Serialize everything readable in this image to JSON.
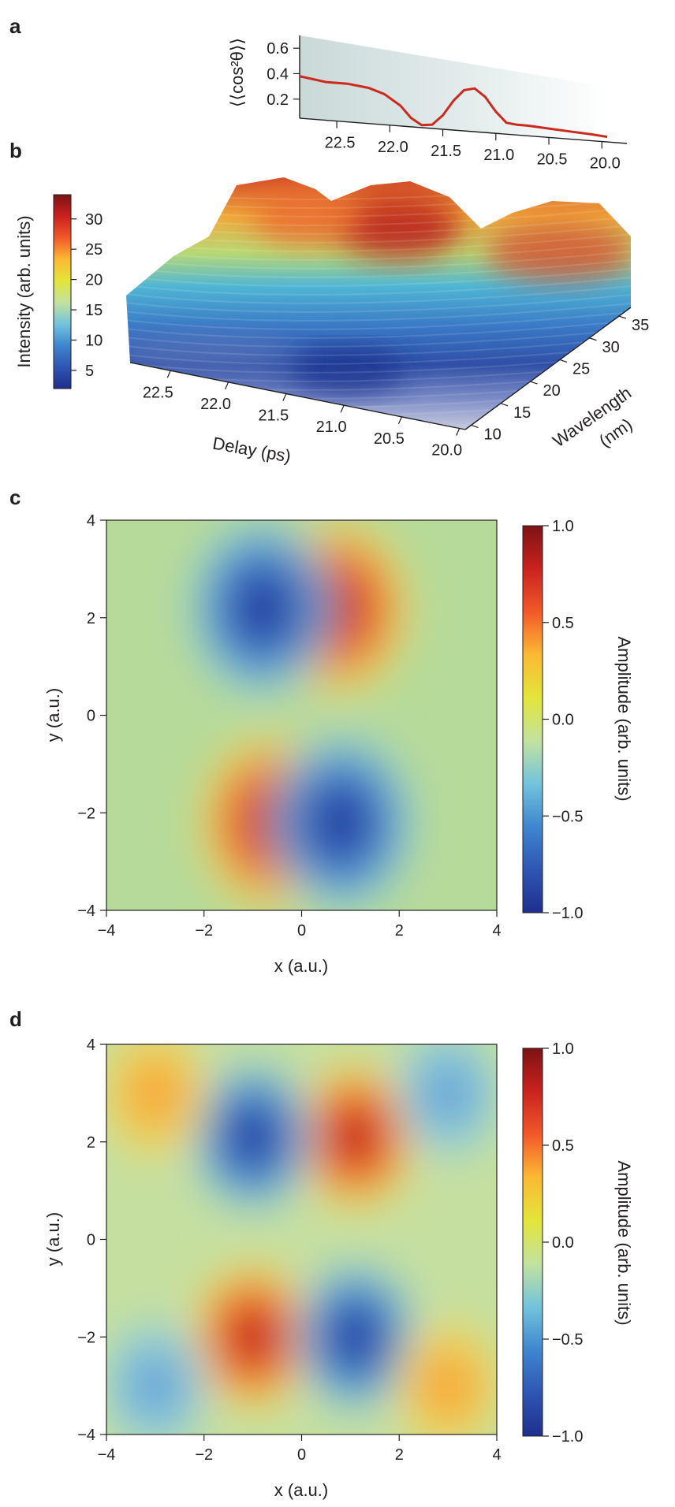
{
  "panels": {
    "a": "a",
    "b": "b",
    "c": "c",
    "d": "d"
  },
  "colors": {
    "jet": [
      "#1f2f8e",
      "#2f55b3",
      "#3f86cf",
      "#73c3dc",
      "#c3e2a0",
      "#e3e53a",
      "#fbb934",
      "#f2582a",
      "#c9221f",
      "#7c1314"
    ],
    "trace": "#cc2a1f"
  },
  "chart_data": [
    {
      "type": "line",
      "panel": "a",
      "ylabel": "⟨⟨cos²θ⟩⟩",
      "yticks": [
        "0.6",
        "0.4",
        "0.2"
      ],
      "ytick_values": [
        0.6,
        0.4,
        0.2
      ],
      "xticks": [
        "22.5",
        "22.0",
        "21.5",
        "21.0",
        "20.5",
        "20.0"
      ],
      "xtick_values": [
        22.5,
        22.0,
        21.5,
        21.0,
        20.5,
        20.0
      ],
      "xlim": [
        22.85,
        19.95
      ],
      "ylim": [
        0.05,
        0.7
      ],
      "x": [
        22.85,
        22.6,
        22.4,
        22.2,
        22.05,
        21.9,
        21.8,
        21.7,
        21.6,
        21.5,
        21.4,
        21.3,
        21.2,
        21.1,
        21.0,
        20.9,
        20.8,
        20.7,
        20.5,
        20.3,
        20.1,
        19.95
      ],
      "values": [
        0.38,
        0.35,
        0.35,
        0.33,
        0.29,
        0.21,
        0.12,
        0.07,
        0.08,
        0.16,
        0.28,
        0.37,
        0.39,
        0.33,
        0.22,
        0.14,
        0.13,
        0.13,
        0.12,
        0.11,
        0.1,
        0.09
      ]
    },
    {
      "type": "surface",
      "panel": "b",
      "xlabel": "Delay (ps)",
      "ylabel_line1": "Wavelength",
      "ylabel_line2": "(nm)",
      "colorbar_label": "Intensity (arb. units)",
      "colorbar_ticks": [
        "30",
        "25",
        "20",
        "15",
        "10",
        "5"
      ],
      "colorbar_tick_values": [
        30,
        25,
        20,
        15,
        10,
        5
      ],
      "colorbar_range": [
        2,
        34
      ],
      "xticks": [
        "22.5",
        "22.0",
        "21.5",
        "21.0",
        "20.5",
        "20.0"
      ],
      "xtick_values": [
        22.5,
        22.0,
        21.5,
        21.0,
        20.5,
        20.0
      ],
      "wavelength_ticks": [
        "10",
        "15",
        "20",
        "25",
        "30",
        "35"
      ],
      "wavelength_tick_values": [
        10,
        15,
        20,
        25,
        30,
        35
      ],
      "xlim": [
        22.85,
        19.95
      ],
      "wavelength_lim": [
        9,
        37
      ]
    },
    {
      "type": "heatmap",
      "panel": "c",
      "xlabel": "x (a.u.)",
      "ylabel": "y (a.u.)",
      "colorbar_label": "Amplitude (arb. units)",
      "xticks": [
        "−4",
        "−2",
        "0",
        "2",
        "4"
      ],
      "yticks": [
        "4",
        "2",
        "0",
        "−2",
        "−4"
      ],
      "tick_values": [
        -4,
        -2,
        0,
        2,
        4
      ],
      "colorbar_ticks": [
        "1.0",
        "0.5",
        "0.0",
        "−0.5",
        "−1.0"
      ],
      "colorbar_tick_values": [
        1.0,
        0.5,
        0.0,
        -0.5,
        -1.0
      ],
      "xlim": [
        -4,
        4
      ],
      "ylim": [
        -4,
        4
      ],
      "zlim": [
        -1,
        1
      ],
      "lobes": [
        {
          "x": 0.7,
          "y": 2.2,
          "amplitude": 1.0
        },
        {
          "x": -0.8,
          "y": 2.2,
          "amplitude": -1.0
        },
        {
          "x": -0.6,
          "y": -2.2,
          "amplitude": 1.0
        },
        {
          "x": 0.8,
          "y": -2.2,
          "amplitude": -1.0
        }
      ]
    },
    {
      "type": "heatmap",
      "panel": "d",
      "xlabel": "x (a.u.)",
      "ylabel": "y (a.u.)",
      "colorbar_label": "Amplitude (arb. units)",
      "xticks": [
        "−4",
        "−2",
        "0",
        "2",
        "4"
      ],
      "yticks": [
        "4",
        "2",
        "0",
        "−2",
        "−4"
      ],
      "tick_values": [
        -4,
        -2,
        0,
        2,
        4
      ],
      "colorbar_ticks": [
        "1.0",
        "0.5",
        "0.0",
        "−0.5",
        "−1.0"
      ],
      "colorbar_tick_values": [
        1.0,
        0.5,
        0.0,
        -0.5,
        -1.0
      ],
      "xlim": [
        -4,
        4
      ],
      "ylim": [
        -4,
        4
      ],
      "zlim": [
        -1,
        1
      ],
      "lobes": [
        {
          "x": 1.1,
          "y": 2.1,
          "amplitude": 1.0
        },
        {
          "x": -1.0,
          "y": 2.1,
          "amplitude": -1.0
        },
        {
          "x": -1.0,
          "y": -2.0,
          "amplitude": 1.0
        },
        {
          "x": 1.1,
          "y": -2.0,
          "amplitude": -1.0
        },
        {
          "x": -3.0,
          "y": 3.0,
          "amplitude": 0.5
        },
        {
          "x": 3.0,
          "y": 3.0,
          "amplitude": -0.4
        },
        {
          "x": -3.0,
          "y": -3.0,
          "amplitude": -0.4
        },
        {
          "x": 3.0,
          "y": -3.0,
          "amplitude": 0.5
        }
      ]
    }
  ]
}
